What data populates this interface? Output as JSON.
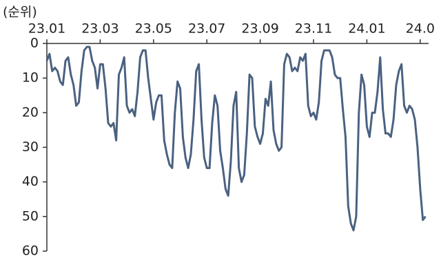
{
  "chart_data": {
    "type": "line",
    "y_label": "(순위)",
    "categories": [
      "23.01",
      null,
      null,
      null,
      null,
      null,
      null,
      null,
      null,
      null,
      null,
      null,
      null,
      null,
      null,
      null,
      null,
      null,
      null,
      null,
      "23.03",
      null,
      null,
      null,
      null,
      null,
      null,
      null,
      null,
      null,
      null,
      null,
      null,
      null,
      null,
      null,
      null,
      null,
      null,
      null,
      "23.05",
      null,
      null,
      null,
      null,
      null,
      null,
      null,
      null,
      null,
      null,
      null,
      null,
      null,
      null,
      null,
      null,
      null,
      null,
      null,
      "23.07",
      null,
      null,
      null,
      null,
      null,
      null,
      null,
      null,
      null,
      null,
      null,
      null,
      null,
      null,
      null,
      null,
      null,
      null,
      null,
      "23.09",
      null,
      null,
      null,
      null,
      null,
      null,
      null,
      null,
      null,
      null,
      null,
      null,
      null,
      null,
      null,
      null,
      null,
      null,
      null,
      "23.11",
      null,
      null,
      null,
      null,
      null,
      null,
      null,
      null,
      null,
      null,
      null,
      null,
      null,
      null,
      null,
      null,
      null,
      null,
      null,
      "24.01",
      null,
      null,
      null,
      null,
      null,
      null,
      null,
      null,
      null,
      null,
      null,
      null,
      null,
      null,
      null,
      null,
      null,
      null,
      null,
      "24.0",
      null,
      null
    ],
    "values": [
      5,
      3,
      8,
      7,
      8,
      11,
      12,
      5,
      4,
      9,
      12,
      18,
      17,
      8,
      2,
      1,
      1,
      5,
      7,
      13,
      6,
      6,
      13,
      23,
      24,
      23,
      28,
      9,
      7,
      4,
      18,
      20,
      19,
      21,
      14,
      4,
      2,
      2,
      10,
      16,
      22,
      17,
      15,
      15,
      28,
      32,
      35,
      36,
      20,
      11,
      13,
      27,
      33,
      36,
      32,
      22,
      8,
      6,
      22,
      33,
      36,
      36,
      23,
      15,
      18,
      31,
      36,
      42,
      44,
      34,
      18,
      14,
      36,
      40,
      38,
      26,
      9,
      10,
      24,
      27,
      29,
      26,
      16,
      18,
      11,
      25,
      29,
      31,
      30,
      6,
      3,
      4,
      8,
      7,
      8,
      4,
      5,
      3,
      18,
      21,
      20,
      22,
      17,
      5,
      2,
      2,
      2,
      4,
      9,
      10,
      10,
      19,
      27,
      47,
      52,
      54,
      50,
      20,
      9,
      12,
      24,
      27,
      20,
      20,
      14,
      4,
      19,
      26,
      26,
      27,
      22,
      12,
      8,
      6,
      18,
      20,
      18,
      19,
      22,
      30,
      42,
      51,
      50
    ],
    "color": "#4a6180",
    "ylim": [
      0,
      60
    ],
    "y_inverted": true,
    "yticks": [
      0,
      10,
      20,
      30,
      40,
      50,
      60
    ]
  }
}
